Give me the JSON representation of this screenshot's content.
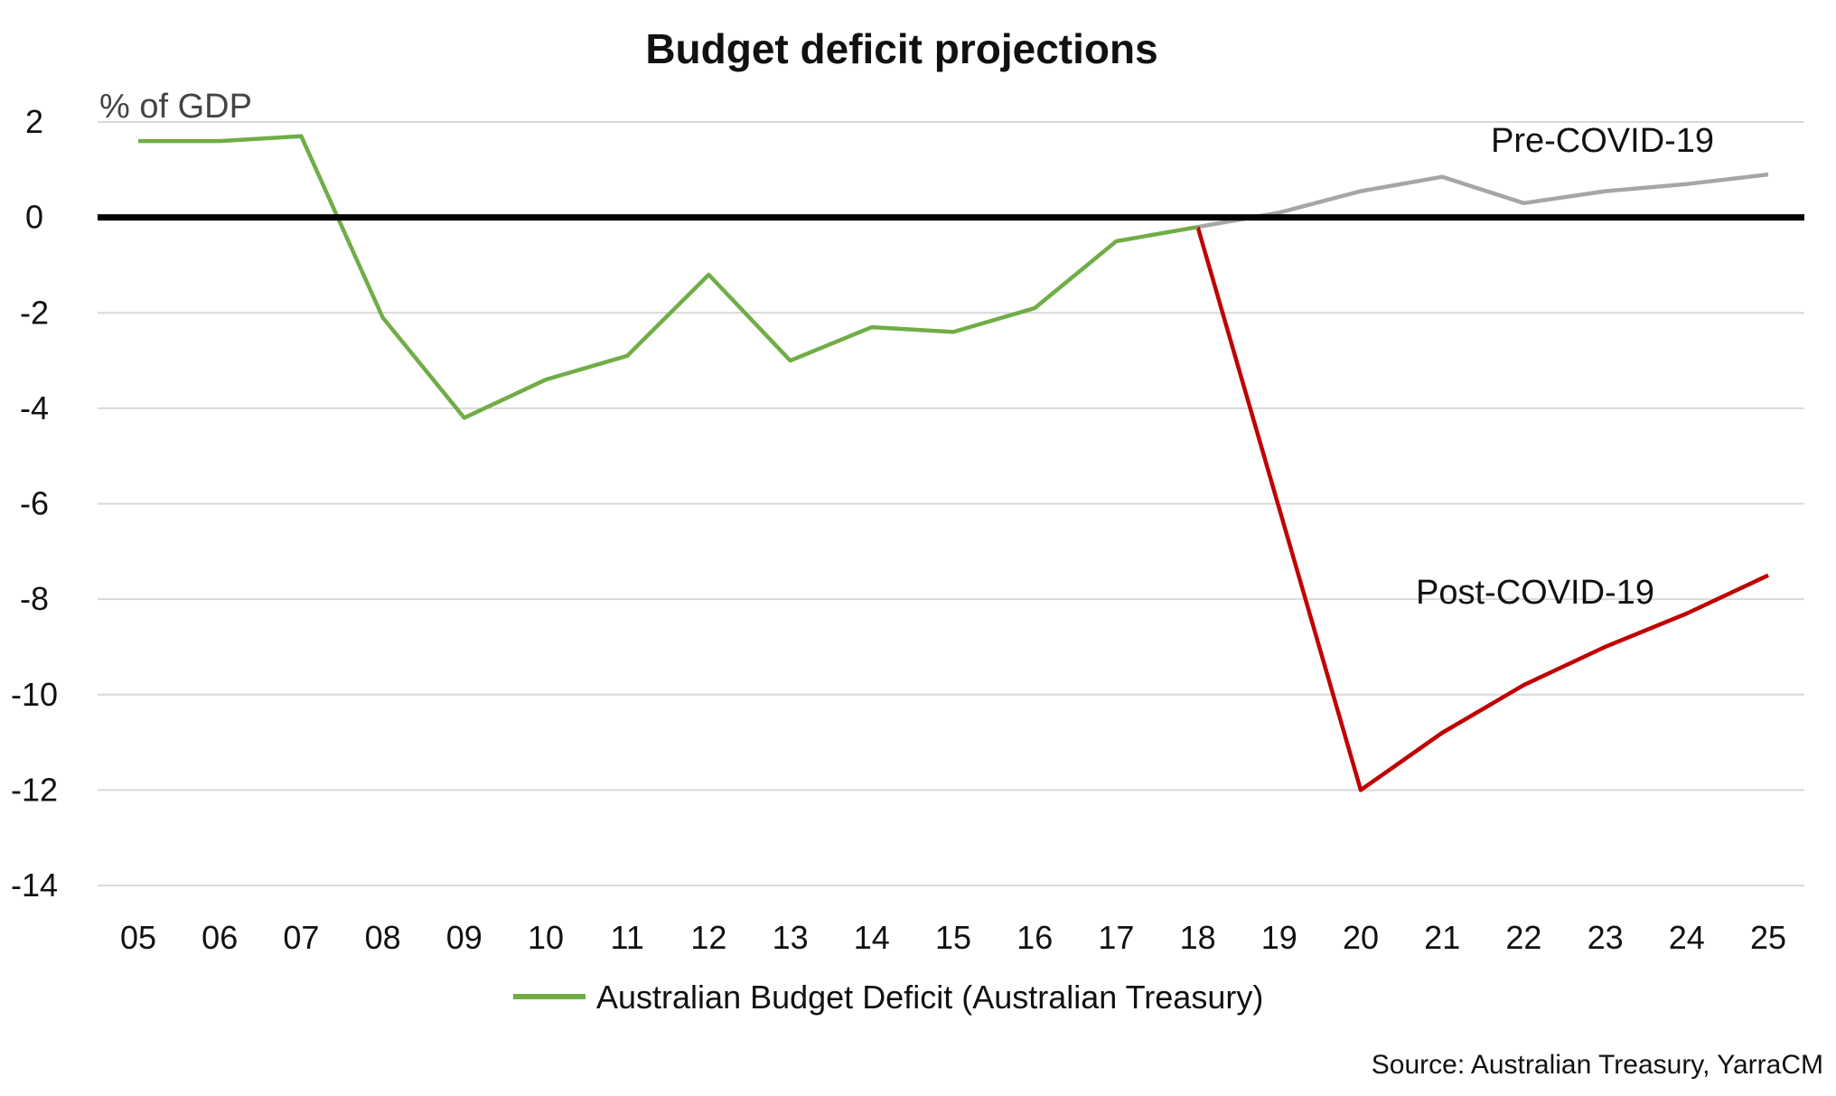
{
  "chart_data": {
    "type": "line",
    "title": "Budget deficit projections",
    "ylabel": "% of GDP",
    "xlabel": "",
    "categories": [
      "05",
      "06",
      "07",
      "08",
      "09",
      "10",
      "11",
      "12",
      "13",
      "14",
      "15",
      "16",
      "17",
      "18",
      "19",
      "20",
      "21",
      "22",
      "23",
      "24",
      "25"
    ],
    "yticks": [
      2,
      0,
      -2,
      -4,
      -6,
      -8,
      -10,
      -12,
      -14
    ],
    "ylim": [
      -14,
      2
    ],
    "grid": true,
    "legend_position": "bottom",
    "series": [
      {
        "name": "Australian Budget Deficit (Australian Treasury)",
        "color": "#70ad47",
        "x": [
          "05",
          "06",
          "07",
          "08",
          "09",
          "10",
          "11",
          "12",
          "13",
          "14",
          "15",
          "16",
          "17",
          "18"
        ],
        "values": [
          1.6,
          1.6,
          1.7,
          -2.1,
          -4.2,
          -3.4,
          -2.9,
          -1.2,
          -3.0,
          -2.3,
          -2.4,
          -1.9,
          -0.5,
          -0.2
        ]
      },
      {
        "label": "Pre-COVID-19",
        "color": "#a6a6a6",
        "x": [
          "18",
          "19",
          "20",
          "21",
          "22",
          "23",
          "24",
          "25"
        ],
        "values": [
          -0.2,
          0.1,
          0.55,
          0.85,
          0.3,
          0.55,
          0.7,
          0.9
        ]
      },
      {
        "label": "Post-COVID-19",
        "color": "#c00000",
        "x": [
          "18",
          "20",
          "21",
          "22",
          "23",
          "24",
          "25"
        ],
        "values": [
          -0.2,
          -12.0,
          -10.8,
          -9.8,
          -9.0,
          -8.3,
          -7.5
        ]
      }
    ],
    "annotations": [
      {
        "text": "Pre-COVID-19",
        "near": "23"
      },
      {
        "text": "Post-COVID-19",
        "near": "22"
      }
    ],
    "source": "Source: Australian Treasury, YarraCM"
  }
}
